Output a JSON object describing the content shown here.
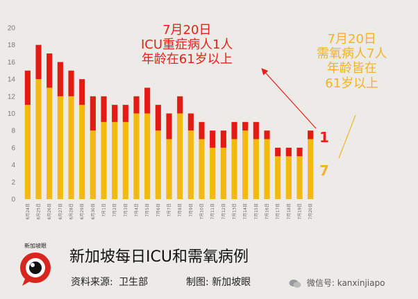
{
  "chart_data": {
    "type": "bar",
    "stacked": true,
    "categories": [
      "6月24日",
      "6月25日",
      "6月26日",
      "6月27日",
      "6月28日",
      "6月29日",
      "6月30日",
      "7月1日",
      "7月2日",
      "7月3日",
      "7月4日",
      "7月5日",
      "7月6日",
      "7月7日",
      "7月8日",
      "7月9日",
      "7月10日",
      "7月11日",
      "7月12日",
      "7月13日",
      "7月14日",
      "7月15日",
      "7月16日",
      "7月17日",
      "7月18日",
      "7月19日",
      "7月20日"
    ],
    "series": [
      {
        "color": "#f3b90f",
        "values": [
          11,
          14,
          13,
          12,
          12,
          11,
          8,
          9,
          9,
          9,
          10,
          10,
          8,
          7,
          10,
          8,
          7,
          6,
          6,
          7,
          8,
          7,
          7,
          5,
          5,
          5,
          7
        ]
      },
      {
        "color": "#e31b14",
        "values": [
          4,
          4,
          4,
          4,
          3,
          3,
          4,
          3,
          2,
          2,
          2,
          3,
          3,
          3,
          2,
          2,
          2,
          2,
          2,
          2,
          1,
          2,
          1,
          1,
          1,
          1,
          1
        ]
      }
    ],
    "ylim": [
      0,
      20
    ],
    "yticks": [
      "0",
      "2",
      "4",
      "6",
      "8",
      "10",
      "12",
      "14",
      "16",
      "18",
      "20"
    ],
    "grid": false,
    "annotations": [
      {
        "lines": [
          "7月20日",
          "ICU重症病人1人",
          "年龄在61岁以上"
        ],
        "color": "#e8201a"
      },
      {
        "lines": [
          "7月20日",
          "需氧病人7人",
          "年龄皆在",
          "61岁以上"
        ],
        "color": "#f3b227"
      }
    ],
    "callouts": [
      {
        "text": "1",
        "color": "#e8201a"
      },
      {
        "text": "7",
        "color": "#f3b227"
      }
    ]
  },
  "footer": {
    "title": "新加坡每日ICU和需氧病例",
    "source_label": "资料来源:",
    "source_value": "卫生部",
    "maker_label": "制图:",
    "maker_value": "新加坡眼",
    "logo_text": "新加坡眼",
    "wechat_label": "微信号:",
    "wechat_id": "kanxinjiapo"
  },
  "colors": {
    "oxygen": "#f3b90f",
    "icu": "#e31b14",
    "background": "#ecebe7"
  }
}
